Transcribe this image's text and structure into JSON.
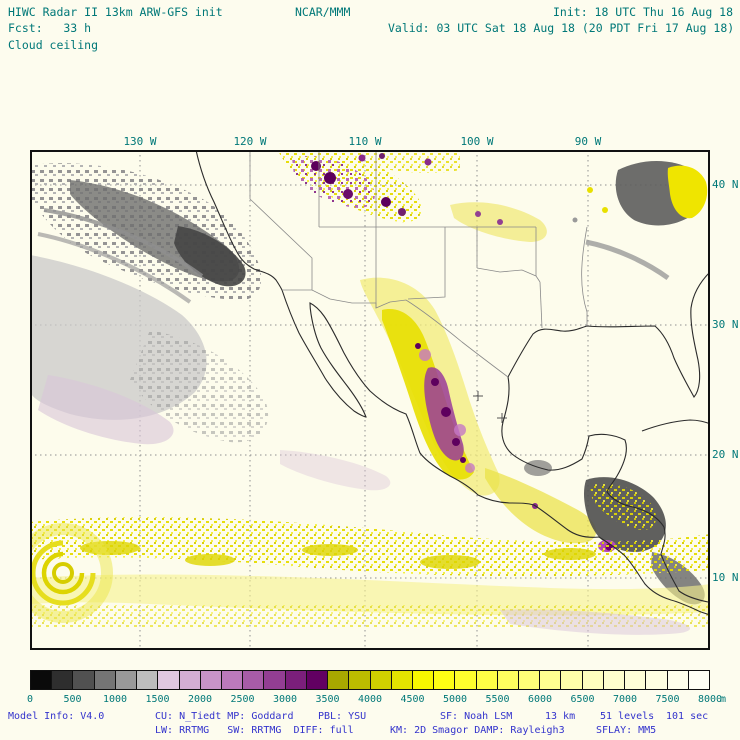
{
  "header": {
    "title": "HIWC Radar II 13km ARW-GFS init",
    "org": "NCAR/MMM",
    "init": "Init: 18 UTC Thu 16 Aug 18",
    "fcst": "Fcst:   33 h",
    "valid": "Valid: 03 UTC Sat 18 Aug 18 (20 PDT Fri 17 Aug 18)",
    "field": "Cloud ceiling"
  },
  "map": {
    "lon_labels": [
      "130 W",
      "120 W",
      "110 W",
      "100 W",
      "90 W"
    ],
    "lat_labels": [
      "40 N",
      "30 N",
      "20 N",
      "10 N"
    ]
  },
  "colorbar": {
    "unit": "m",
    "ticks": [
      "0",
      "500",
      "1000",
      "1500",
      "2000",
      "2500",
      "3000",
      "3500",
      "4000",
      "4500",
      "5000",
      "5500",
      "6000",
      "6500",
      "7000",
      "7500",
      "8000"
    ],
    "colors": [
      "#0a0a0a",
      "#2e2e2e",
      "#515151",
      "#757575",
      "#999999",
      "#bdbdbd",
      "#e0c8e0",
      "#d4aed4",
      "#c894c8",
      "#bc7abc",
      "#a85ca8",
      "#933e93",
      "#7b1f7b",
      "#620062",
      "#a8a800",
      "#bcbc00",
      "#d0d000",
      "#e4e400",
      "#f8f800",
      "#ffff14",
      "#ffff2d",
      "#ffff46",
      "#ffff5f",
      "#ffff78",
      "#ffff91",
      "#ffffaa",
      "#ffffbe",
      "#ffffcd",
      "#ffffd7",
      "#ffffe1",
      "#ffffeb",
      "#fffff5"
    ]
  },
  "footer": {
    "segments1": [
      "Model Info: V4.0",
      "CU: N_Tiedt MP: Goddard",
      "PBL: YSU",
      "SF: Noah LSM",
      "13 km",
      "51 levels",
      "101 sec"
    ],
    "segments2": [
      "LW: RRTMG   SW: RRTMG  DIFF: full",
      "KM: 2D Smagor DAMP: Rayleigh3",
      "SFLAY: MM5"
    ]
  },
  "palette": {
    "text_teal": "#007878",
    "text_blue": "#3333cc",
    "background": "#fdfcee",
    "frame": "#111111"
  }
}
